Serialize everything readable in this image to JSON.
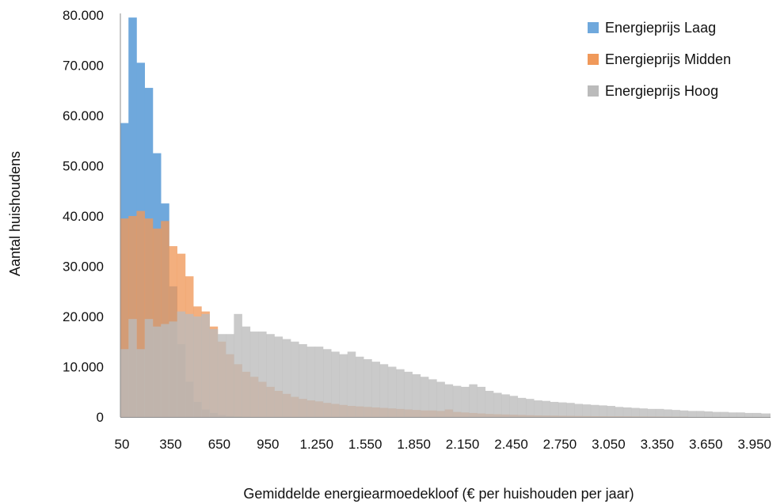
{
  "chart_data": {
    "type": "histogram",
    "xlabel": "Gemiddelde energiearmoedekloof (€ per huishouden per jaar)",
    "ylabel": "Aantal huishoudens",
    "ylim": [
      0,
      80000
    ],
    "y_ticks": [
      0,
      10000,
      20000,
      30000,
      40000,
      50000,
      60000,
      70000,
      80000
    ],
    "y_tick_labels": [
      "0",
      "10.000",
      "20.000",
      "30.000",
      "40.000",
      "50.000",
      "60.000",
      "70.000",
      "80.000"
    ],
    "x_tick_labels": [
      "50",
      "350",
      "650",
      "950",
      "1.250",
      "1.550",
      "1.850",
      "2.150",
      "2.450",
      "2.750",
      "3.050",
      "3.350",
      "3.650",
      "3.950"
    ],
    "bin_start": 50,
    "bin_width": 50,
    "grid": false,
    "legend_position": "top-right",
    "series": [
      {
        "name": "Energieprijs Laag",
        "color": "#6fa8dc",
        "values": [
          58500,
          79500,
          70500,
          65500,
          52500,
          42500,
          26000,
          14500,
          7000,
          3000,
          1500,
          800,
          400,
          200,
          100,
          50
        ]
      },
      {
        "name": "Energieprijs Midden",
        "color": "#f0995a",
        "values": [
          39500,
          40000,
          41000,
          39500,
          37500,
          39000,
          34000,
          32500,
          28000,
          22000,
          21000,
          18000,
          15000,
          12500,
          10500,
          9000,
          8000,
          7000,
          6000,
          5200,
          4600,
          4000,
          3600,
          3300,
          3100,
          2800,
          2600,
          2400,
          2200,
          2100,
          2000,
          1900,
          1800,
          1700,
          1600,
          1500,
          1400,
          1300,
          1300,
          1200,
          1500,
          1000,
          900,
          800,
          700,
          600,
          550,
          500,
          450,
          400,
          350,
          300,
          280,
          260,
          240,
          220,
          200,
          180,
          160,
          150,
          140,
          130,
          120,
          110,
          100,
          90,
          80,
          70,
          60,
          50
        ]
      },
      {
        "name": "Energieprijs Hoog",
        "color": "#bbbbbb",
        "values": [
          13500,
          19500,
          13500,
          19500,
          18000,
          18500,
          19000,
          21000,
          20500,
          20000,
          20500,
          17500,
          16500,
          16500,
          20500,
          18000,
          17000,
          17000,
          16500,
          16000,
          15500,
          15000,
          14500,
          14000,
          14000,
          13500,
          13000,
          12500,
          13000,
          12000,
          11500,
          11000,
          10500,
          10000,
          9500,
          9000,
          8500,
          8000,
          7500,
          7000,
          6500,
          6200,
          6000,
          6500,
          6000,
          5200,
          4800,
          4500,
          4200,
          3800,
          3600,
          3300,
          3200,
          3000,
          2900,
          2800,
          2600,
          2500,
          2400,
          2300,
          2200,
          2000,
          1900,
          1800,
          1700,
          1600,
          1600,
          1500,
          1400,
          1300,
          1200,
          1200,
          1100,
          1000,
          1000,
          900,
          900,
          800,
          800,
          700,
          700,
          600,
          600,
          550,
          500,
          500
        ]
      }
    ]
  }
}
